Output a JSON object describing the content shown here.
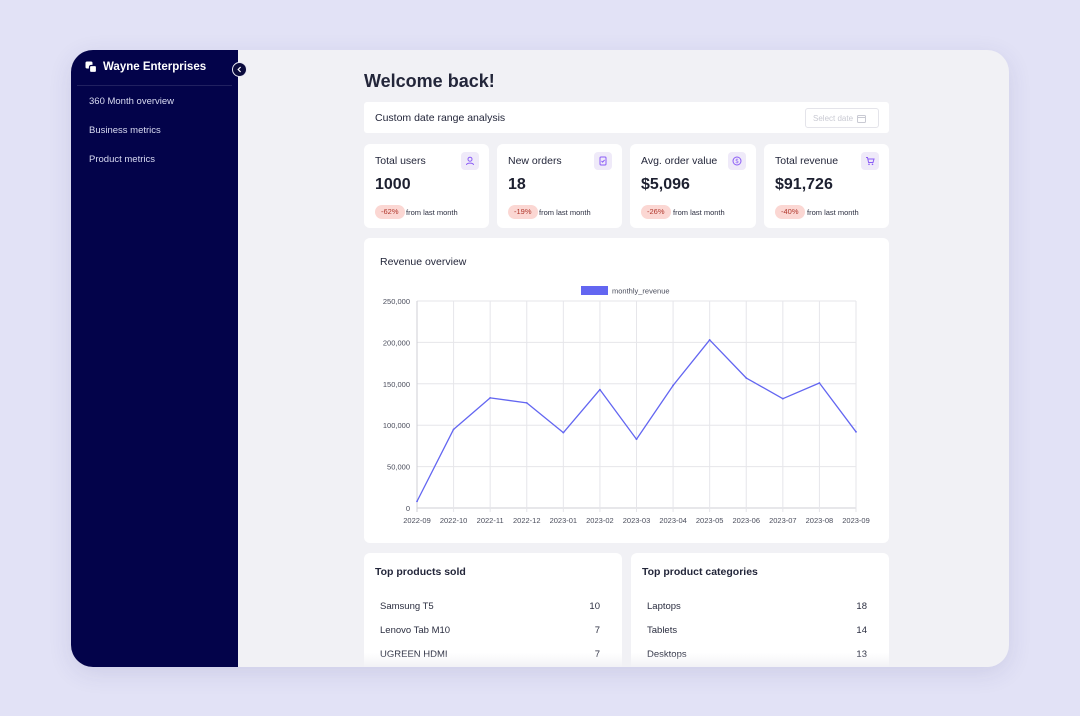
{
  "sidebar": {
    "brand": "Wayne Enterprises",
    "items": [
      {
        "label": "360 Month overview"
      },
      {
        "label": "Business metrics"
      },
      {
        "label": "Product metrics"
      }
    ]
  },
  "header": {
    "title": "Welcome back!"
  },
  "date_range": {
    "label": "Custom date range analysis",
    "placeholder": "Select date"
  },
  "kpis": [
    {
      "title": "Total users",
      "value": "1000",
      "delta": "-62%",
      "delta_text": "from last month",
      "icon": "user-icon"
    },
    {
      "title": "New orders",
      "value": "18",
      "delta": "-19%",
      "delta_text": "from last month",
      "icon": "clipboard-icon"
    },
    {
      "title": "Avg. order value",
      "value": "$5,096",
      "delta": "-26%",
      "delta_text": "from last month",
      "icon": "dollar-icon"
    },
    {
      "title": "Total revenue",
      "value": "$91,726",
      "delta": "-40%",
      "delta_text": "from last month",
      "icon": "cart-icon"
    }
  ],
  "revenue": {
    "title": "Revenue overview"
  },
  "chart_data": {
    "type": "line",
    "title": "Revenue overview",
    "legend": "top",
    "grid": true,
    "x": [
      "2022-09",
      "2022-10",
      "2022-11",
      "2022-12",
      "2023-01",
      "2023-02",
      "2023-03",
      "2023-04",
      "2023-05",
      "2023-06",
      "2023-07",
      "2023-08",
      "2023-09"
    ],
    "series": [
      {
        "name": "monthly_revenue",
        "color": "#6366f1",
        "values": [
          8000,
          95000,
          133000,
          127000,
          91000,
          143000,
          83000,
          148000,
          203000,
          157000,
          132000,
          151000,
          92000
        ]
      }
    ],
    "ylim": [
      0,
      250000
    ],
    "yticks": [
      "0",
      "50,000",
      "100,000",
      "150,000",
      "200,000",
      "250,000"
    ]
  },
  "top_products": {
    "title": "Top products sold",
    "rows": [
      {
        "name": "Samsung T5",
        "count": "10"
      },
      {
        "name": "Lenovo Tab M10",
        "count": "7"
      },
      {
        "name": "UGREEN HDMI",
        "count": "7"
      }
    ]
  },
  "top_categories": {
    "title": "Top product categories",
    "rows": [
      {
        "name": "Laptops",
        "count": "18"
      },
      {
        "name": "Tablets",
        "count": "14"
      },
      {
        "name": "Desktops",
        "count": "13"
      }
    ]
  },
  "colors": {
    "sidebar": "#03034a",
    "accent": "#6366f1",
    "badge_bg": "#fbd7d3",
    "badge_text": "#b0372c"
  }
}
